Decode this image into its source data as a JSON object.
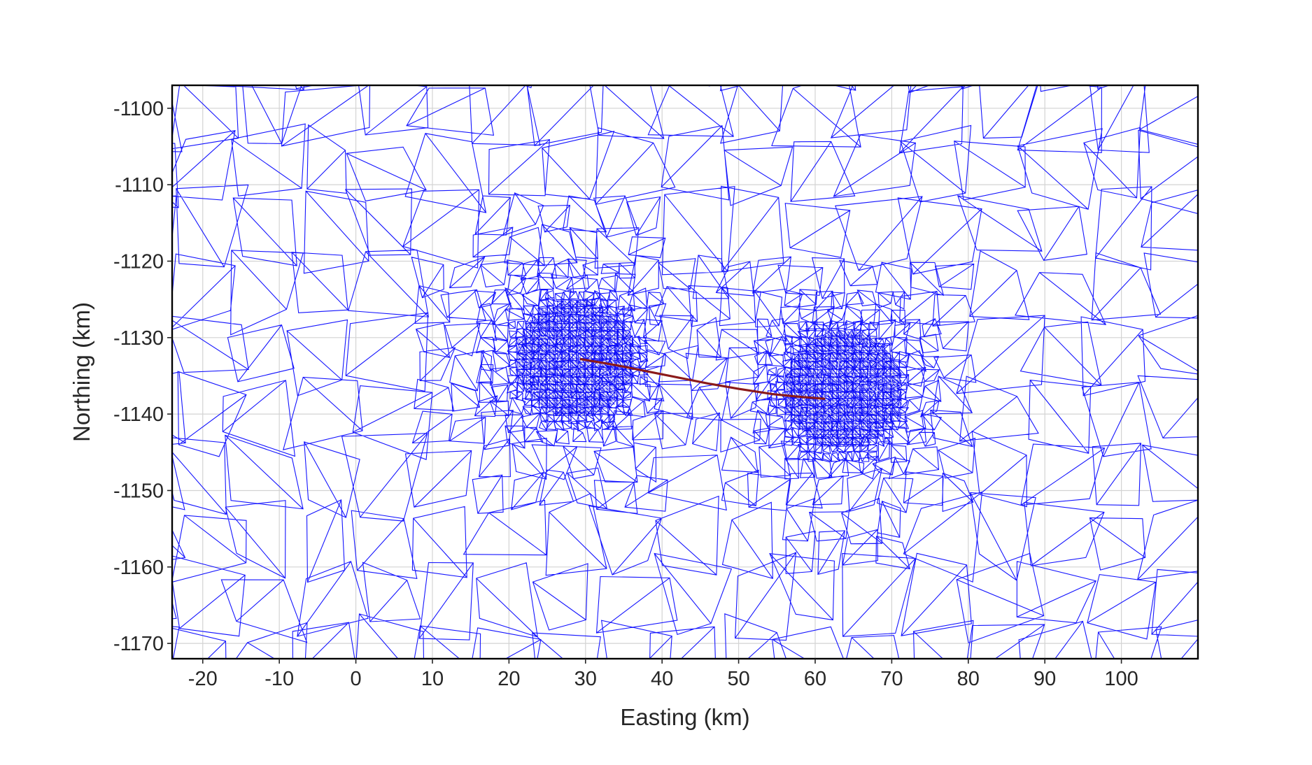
{
  "chart_data": {
    "type": "mesh",
    "xlabel": "Easting (km)",
    "ylabel": "Northing (km)",
    "xlim": [
      -24,
      110
    ],
    "ylim": [
      -1172,
      -1097
    ],
    "xticks": [
      -20,
      -10,
      0,
      10,
      20,
      30,
      40,
      50,
      60,
      70,
      80,
      90,
      100
    ],
    "yticks": [
      -1100,
      -1110,
      -1120,
      -1130,
      -1140,
      -1150,
      -1160,
      -1170
    ],
    "grid": true,
    "mesh_color": "#1515ff",
    "trace_color": "#8b1a1a",
    "trace": {
      "x": [
        29.3,
        34.0,
        40.0,
        46.0,
        50.0,
        54.5,
        57.5,
        61.3
      ],
      "y": [
        -1132.8,
        -1133.6,
        -1134.8,
        -1136.0,
        -1136.7,
        -1137.4,
        -1137.7,
        -1138.0
      ]
    },
    "refined_regions": [
      {
        "center": [
          28.5,
          -1133.0
        ],
        "radius": 14
      },
      {
        "center": [
          63.5,
          -1137.0
        ],
        "radius": 14
      }
    ]
  }
}
